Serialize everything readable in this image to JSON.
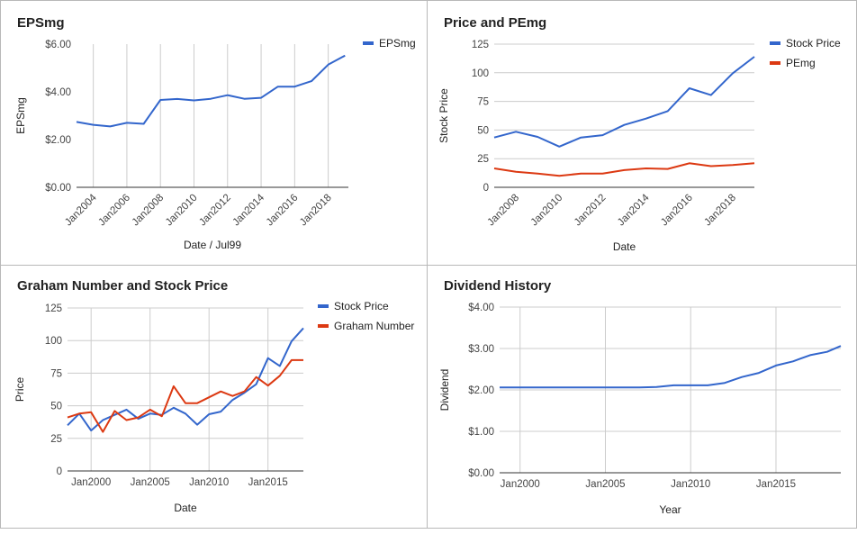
{
  "chart_data": [
    {
      "type": "line",
      "title": "EPSmg",
      "xlabel": "Date / Jul99",
      "ylabel": "EPSmg",
      "ylim": [
        0,
        6
      ],
      "y_ticks": [
        0,
        2,
        4,
        6
      ],
      "y_tick_labels": [
        "$0.00",
        "$2.00",
        "$4.00",
        "$6.00"
      ],
      "xlim": [
        2003,
        2019.2
      ],
      "x_ticks": [
        2004,
        2006,
        2008,
        2010,
        2012,
        2014,
        2016,
        2018
      ],
      "x_tick_labels": [
        "Jan2004",
        "Jan2006",
        "Jan2008",
        "Jan2010",
        "Jan2012",
        "Jan2014",
        "Jan2016",
        "Jan2018"
      ],
      "x_labels_rotated": true,
      "grid": "vertical",
      "legend": "right",
      "series": [
        {
          "name": "EPSmg",
          "color": "#3366cc",
          "x": [
            2003,
            2004,
            2005,
            2006,
            2007,
            2008,
            2009,
            2010,
            2011,
            2012,
            2013,
            2014,
            2015,
            2016,
            2017,
            2018,
            2019
          ],
          "values": [
            2.74,
            2.62,
            2.55,
            2.7,
            2.66,
            3.66,
            3.7,
            3.64,
            3.71,
            3.86,
            3.71,
            3.75,
            4.22,
            4.22,
            4.45,
            5.14,
            5.52
          ]
        }
      ]
    },
    {
      "type": "line",
      "title": "Price and PEmg",
      "xlabel": "Date",
      "ylabel": "Stock Price",
      "ylim": [
        0,
        125
      ],
      "y_ticks": [
        0,
        25,
        50,
        75,
        100,
        125
      ],
      "y_tick_labels": [
        "0",
        "25",
        "50",
        "75",
        "100",
        "125"
      ],
      "xlim": [
        2007,
        2019
      ],
      "x_ticks": [
        2008,
        2010,
        2012,
        2014,
        2016,
        2018
      ],
      "x_tick_labels": [
        "Jan2008",
        "Jan2010",
        "Jan2012",
        "Jan2014",
        "Jan2016",
        "Jan2018"
      ],
      "x_labels_rotated": true,
      "grid": "horizontal",
      "legend": "right",
      "series": [
        {
          "name": "Stock Price",
          "color": "#3366cc",
          "x": [
            2007,
            2008,
            2009,
            2010,
            2011,
            2012,
            2013,
            2014,
            2015,
            2016,
            2017,
            2018,
            2019
          ],
          "values": [
            43.5,
            48.5,
            44,
            35.5,
            43.5,
            45.5,
            54.5,
            60,
            66.5,
            86.5,
            80.5,
            99.5,
            114
          ]
        },
        {
          "name": "PEmg",
          "color": "#dc3912",
          "x": [
            2007,
            2008,
            2009,
            2010,
            2011,
            2012,
            2013,
            2014,
            2015,
            2016,
            2017,
            2018,
            2019
          ],
          "values": [
            16.5,
            13.5,
            12,
            10,
            12,
            12,
            15,
            16.5,
            16,
            21,
            18.5,
            19.5,
            21
          ]
        }
      ]
    },
    {
      "type": "line",
      "title": "Graham Number and Stock Price",
      "xlabel": "Date",
      "ylabel": "Price",
      "ylim": [
        0,
        125
      ],
      "y_ticks": [
        0,
        25,
        50,
        75,
        100,
        125
      ],
      "y_tick_labels": [
        "0",
        "25",
        "50",
        "75",
        "100",
        "125"
      ],
      "xlim": [
        1998,
        2018
      ],
      "x_ticks": [
        2000,
        2005,
        2010,
        2015
      ],
      "x_tick_labels": [
        "Jan2000",
        "Jan2005",
        "Jan2010",
        "Jan2015"
      ],
      "x_labels_rotated": false,
      "grid": "both",
      "legend": "right",
      "series": [
        {
          "name": "Stock Price",
          "color": "#3366cc",
          "x": [
            1998,
            1999,
            2000,
            2001,
            2002,
            2003,
            2004,
            2005,
            2006,
            2007,
            2008,
            2009,
            2010,
            2011,
            2012,
            2013,
            2014,
            2015,
            2016,
            2017,
            2018
          ],
          "values": [
            35,
            44,
            31,
            39,
            43,
            47,
            40,
            44,
            43,
            48.5,
            44,
            35.5,
            43.5,
            45.5,
            54.5,
            60,
            66.5,
            86.5,
            80.5,
            99.5,
            109.5
          ]
        },
        {
          "name": "Graham Number",
          "color": "#dc3912",
          "x": [
            1998,
            1999,
            2000,
            2001,
            2002,
            2003,
            2004,
            2005,
            2006,
            2007,
            2008,
            2009,
            2010,
            2011,
            2012,
            2013,
            2014,
            2015,
            2016,
            2017,
            2018
          ],
          "values": [
            41,
            44,
            45,
            30,
            46,
            39,
            41,
            47,
            42,
            65,
            52,
            52,
            56.5,
            61,
            57.5,
            61,
            72,
            65.5,
            73,
            85,
            85
          ]
        }
      ]
    },
    {
      "type": "line",
      "title": "Dividend History",
      "xlabel": "Year",
      "ylabel": "Dividend",
      "ylim": [
        0,
        4
      ],
      "y_ticks": [
        0,
        1,
        2,
        3,
        4
      ],
      "y_tick_labels": [
        "$0.00",
        "$1.00",
        "$2.00",
        "$3.00",
        "$4.00"
      ],
      "xlim": [
        1998.8,
        2018.8
      ],
      "x_ticks": [
        2000,
        2005,
        2010,
        2015
      ],
      "x_tick_labels": [
        "Jan2000",
        "Jan2005",
        "Jan2010",
        "Jan2015"
      ],
      "x_labels_rotated": false,
      "grid": "both",
      "legend": "none",
      "series": [
        {
          "name": "",
          "color": "#3366cc",
          "x": [
            1998.8,
            2000,
            2001,
            2002,
            2003,
            2004,
            2005,
            2006,
            2007,
            2008,
            2009,
            2010,
            2011,
            2012,
            2013,
            2014,
            2015,
            2016,
            2017,
            2018,
            2018.8
          ],
          "values": [
            2.06,
            2.06,
            2.06,
            2.06,
            2.06,
            2.06,
            2.06,
            2.06,
            2.06,
            2.07,
            2.11,
            2.11,
            2.11,
            2.17,
            2.31,
            2.41,
            2.59,
            2.69,
            2.84,
            2.92,
            3.06
          ]
        }
      ]
    }
  ]
}
